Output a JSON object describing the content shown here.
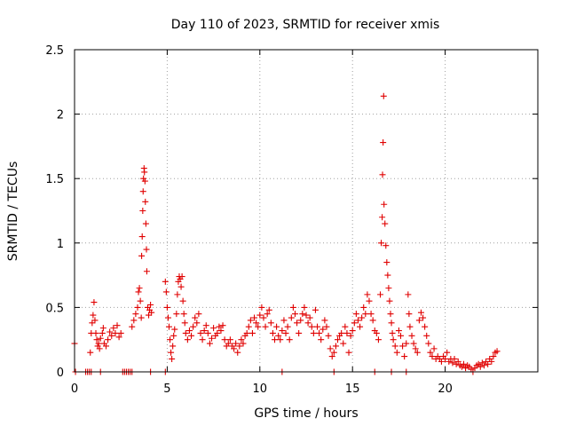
{
  "chart_data": {
    "type": "scatter",
    "title": "Day 110 of 2023, SRMTID for receiver xmis",
    "xlabel": "GPS time / hours",
    "ylabel": "SRMTID / TECUs",
    "xlim": [
      0,
      25
    ],
    "ylim": [
      0,
      2.5
    ],
    "xticks": [
      0,
      5,
      10,
      15,
      20
    ],
    "yticks": [
      0,
      0.5,
      1,
      1.5,
      2,
      2.5
    ],
    "xtick_labels": [
      "0",
      "5",
      "10",
      "15",
      "20"
    ],
    "ytick_labels": [
      "0",
      "0.5",
      "1",
      "1.5",
      "2",
      "2.5"
    ],
    "grid": true,
    "marker": "+",
    "color": "#e00000",
    "series": [
      {
        "name": "SRMTID",
        "points": [
          [
            0.0,
            0.22
          ],
          [
            0.05,
            0.0
          ],
          [
            0.6,
            0.0
          ],
          [
            0.7,
            0.0
          ],
          [
            0.8,
            0.0
          ],
          [
            0.9,
            0.0
          ],
          [
            1.4,
            0.0
          ],
          [
            2.6,
            0.0
          ],
          [
            2.7,
            0.0
          ],
          [
            2.8,
            0.0
          ],
          [
            2.9,
            0.0
          ],
          [
            3.0,
            0.0
          ],
          [
            3.1,
            0.0
          ],
          [
            4.1,
            0.0
          ],
          [
            4.9,
            0.0
          ],
          [
            11.2,
            0.0
          ],
          [
            14.0,
            0.0
          ],
          [
            16.2,
            0.0
          ],
          [
            17.1,
            0.0
          ],
          [
            17.9,
            0.0
          ],
          [
            0.85,
            0.15
          ],
          [
            0.9,
            0.3
          ],
          [
            0.95,
            0.38
          ],
          [
            1.0,
            0.44
          ],
          [
            1.05,
            0.54
          ],
          [
            1.1,
            0.4
          ],
          [
            1.15,
            0.3
          ],
          [
            1.2,
            0.25
          ],
          [
            1.25,
            0.2
          ],
          [
            1.3,
            0.22
          ],
          [
            1.35,
            0.18
          ],
          [
            1.4,
            0.26
          ],
          [
            1.5,
            0.3
          ],
          [
            1.55,
            0.34
          ],
          [
            1.6,
            0.22
          ],
          [
            1.7,
            0.2
          ],
          [
            1.8,
            0.25
          ],
          [
            1.9,
            0.31
          ],
          [
            2.0,
            0.28
          ],
          [
            2.1,
            0.34
          ],
          [
            2.2,
            0.3
          ],
          [
            2.3,
            0.36
          ],
          [
            2.4,
            0.27
          ],
          [
            2.5,
            0.3
          ],
          [
            3.1,
            0.35
          ],
          [
            3.2,
            0.4
          ],
          [
            3.3,
            0.45
          ],
          [
            3.4,
            0.5
          ],
          [
            3.45,
            0.62
          ],
          [
            3.5,
            0.65
          ],
          [
            3.55,
            0.55
          ],
          [
            3.6,
            0.42
          ],
          [
            3.62,
            0.9
          ],
          [
            3.65,
            1.05
          ],
          [
            3.68,
            1.25
          ],
          [
            3.7,
            1.4
          ],
          [
            3.72,
            1.5
          ],
          [
            3.75,
            1.58
          ],
          [
            3.77,
            1.55
          ],
          [
            3.8,
            1.48
          ],
          [
            3.82,
            1.32
          ],
          [
            3.85,
            1.15
          ],
          [
            3.88,
            0.95
          ],
          [
            3.9,
            0.78
          ],
          [
            3.95,
            0.5
          ],
          [
            4.0,
            0.44
          ],
          [
            4.05,
            0.48
          ],
          [
            4.1,
            0.52
          ],
          [
            4.15,
            0.46
          ],
          [
            4.9,
            0.7
          ],
          [
            4.95,
            0.62
          ],
          [
            5.0,
            0.5
          ],
          [
            5.05,
            0.42
          ],
          [
            5.1,
            0.35
          ],
          [
            5.15,
            0.25
          ],
          [
            5.2,
            0.15
          ],
          [
            5.25,
            0.1
          ],
          [
            5.3,
            0.2
          ],
          [
            5.35,
            0.28
          ],
          [
            5.4,
            0.33
          ],
          [
            5.5,
            0.45
          ],
          [
            5.55,
            0.6
          ],
          [
            5.6,
            0.7
          ],
          [
            5.65,
            0.74
          ],
          [
            5.7,
            0.72
          ],
          [
            5.75,
            0.66
          ],
          [
            5.8,
            0.74
          ],
          [
            5.85,
            0.55
          ],
          [
            5.9,
            0.45
          ],
          [
            5.95,
            0.38
          ],
          [
            6.0,
            0.3
          ],
          [
            6.1,
            0.25
          ],
          [
            6.2,
            0.32
          ],
          [
            6.3,
            0.28
          ],
          [
            6.4,
            0.35
          ],
          [
            6.5,
            0.42
          ],
          [
            6.6,
            0.38
          ],
          [
            6.7,
            0.45
          ],
          [
            6.8,
            0.3
          ],
          [
            6.9,
            0.25
          ],
          [
            7.0,
            0.32
          ],
          [
            7.1,
            0.36
          ],
          [
            7.2,
            0.3
          ],
          [
            7.3,
            0.22
          ],
          [
            7.4,
            0.26
          ],
          [
            7.5,
            0.34
          ],
          [
            7.6,
            0.28
          ],
          [
            7.7,
            0.3
          ],
          [
            7.8,
            0.35
          ],
          [
            7.9,
            0.32
          ],
          [
            8.0,
            0.36
          ],
          [
            8.1,
            0.25
          ],
          [
            8.2,
            0.2
          ],
          [
            8.3,
            0.22
          ],
          [
            8.4,
            0.25
          ],
          [
            8.5,
            0.2
          ],
          [
            8.6,
            0.18
          ],
          [
            8.7,
            0.22
          ],
          [
            8.8,
            0.15
          ],
          [
            8.9,
            0.2
          ],
          [
            9.0,
            0.25
          ],
          [
            9.1,
            0.22
          ],
          [
            9.2,
            0.28
          ],
          [
            9.3,
            0.3
          ],
          [
            9.4,
            0.35
          ],
          [
            9.5,
            0.4
          ],
          [
            9.6,
            0.3
          ],
          [
            9.7,
            0.42
          ],
          [
            9.8,
            0.38
          ],
          [
            9.9,
            0.35
          ],
          [
            10.0,
            0.44
          ],
          [
            10.1,
            0.5
          ],
          [
            10.2,
            0.42
          ],
          [
            10.3,
            0.35
          ],
          [
            10.4,
            0.45
          ],
          [
            10.5,
            0.48
          ],
          [
            10.6,
            0.38
          ],
          [
            10.7,
            0.3
          ],
          [
            10.8,
            0.25
          ],
          [
            10.9,
            0.35
          ],
          [
            11.0,
            0.28
          ],
          [
            11.1,
            0.25
          ],
          [
            11.2,
            0.32
          ],
          [
            11.3,
            0.4
          ],
          [
            11.4,
            0.3
          ],
          [
            11.5,
            0.35
          ],
          [
            11.6,
            0.25
          ],
          [
            11.7,
            0.42
          ],
          [
            11.8,
            0.5
          ],
          [
            11.9,
            0.45
          ],
          [
            12.0,
            0.38
          ],
          [
            12.1,
            0.3
          ],
          [
            12.2,
            0.4
          ],
          [
            12.3,
            0.45
          ],
          [
            12.4,
            0.5
          ],
          [
            12.5,
            0.44
          ],
          [
            12.6,
            0.38
          ],
          [
            12.7,
            0.42
          ],
          [
            12.8,
            0.35
          ],
          [
            12.9,
            0.3
          ],
          [
            13.0,
            0.48
          ],
          [
            13.1,
            0.35
          ],
          [
            13.2,
            0.3
          ],
          [
            13.3,
            0.25
          ],
          [
            13.4,
            0.33
          ],
          [
            13.5,
            0.4
          ],
          [
            13.6,
            0.35
          ],
          [
            13.7,
            0.28
          ],
          [
            13.8,
            0.18
          ],
          [
            13.9,
            0.12
          ],
          [
            14.0,
            0.15
          ],
          [
            14.1,
            0.2
          ],
          [
            14.2,
            0.25
          ],
          [
            14.3,
            0.28
          ],
          [
            14.4,
            0.3
          ],
          [
            14.5,
            0.22
          ],
          [
            14.6,
            0.35
          ],
          [
            14.7,
            0.3
          ],
          [
            14.8,
            0.15
          ],
          [
            14.9,
            0.28
          ],
          [
            15.0,
            0.32
          ],
          [
            15.1,
            0.38
          ],
          [
            15.2,
            0.45
          ],
          [
            15.3,
            0.4
          ],
          [
            15.4,
            0.35
          ],
          [
            15.5,
            0.42
          ],
          [
            15.6,
            0.5
          ],
          [
            15.7,
            0.45
          ],
          [
            15.8,
            0.6
          ],
          [
            15.9,
            0.55
          ],
          [
            16.0,
            0.45
          ],
          [
            16.1,
            0.4
          ],
          [
            16.2,
            0.32
          ],
          [
            16.3,
            0.3
          ],
          [
            16.4,
            0.25
          ],
          [
            16.5,
            0.6
          ],
          [
            16.55,
            1.0
          ],
          [
            16.6,
            1.2
          ],
          [
            16.62,
            1.53
          ],
          [
            16.65,
            1.78
          ],
          [
            16.68,
            2.14
          ],
          [
            16.7,
            1.3
          ],
          [
            16.75,
            1.15
          ],
          [
            16.8,
            0.98
          ],
          [
            16.85,
            0.85
          ],
          [
            16.9,
            0.75
          ],
          [
            16.95,
            0.65
          ],
          [
            17.0,
            0.55
          ],
          [
            17.05,
            0.45
          ],
          [
            17.1,
            0.38
          ],
          [
            17.15,
            0.3
          ],
          [
            17.2,
            0.25
          ],
          [
            17.3,
            0.2
          ],
          [
            17.4,
            0.15
          ],
          [
            17.5,
            0.32
          ],
          [
            17.6,
            0.28
          ],
          [
            17.7,
            0.2
          ],
          [
            17.8,
            0.12
          ],
          [
            17.9,
            0.22
          ],
          [
            18.0,
            0.6
          ],
          [
            18.05,
            0.45
          ],
          [
            18.1,
            0.35
          ],
          [
            18.2,
            0.28
          ],
          [
            18.3,
            0.22
          ],
          [
            18.4,
            0.18
          ],
          [
            18.5,
            0.15
          ],
          [
            18.6,
            0.4
          ],
          [
            18.7,
            0.46
          ],
          [
            18.8,
            0.42
          ],
          [
            18.9,
            0.35
          ],
          [
            19.0,
            0.28
          ],
          [
            19.1,
            0.22
          ],
          [
            19.2,
            0.15
          ],
          [
            19.3,
            0.12
          ],
          [
            19.4,
            0.18
          ],
          [
            19.5,
            0.1
          ],
          [
            19.6,
            0.12
          ],
          [
            19.7,
            0.1
          ],
          [
            19.8,
            0.08
          ],
          [
            19.9,
            0.12
          ],
          [
            20.0,
            0.1
          ],
          [
            20.1,
            0.15
          ],
          [
            20.2,
            0.08
          ],
          [
            20.3,
            0.1
          ],
          [
            20.4,
            0.07
          ],
          [
            20.5,
            0.1
          ],
          [
            20.6,
            0.06
          ],
          [
            20.7,
            0.08
          ],
          [
            20.8,
            0.05
          ],
          [
            20.9,
            0.04
          ],
          [
            21.0,
            0.06
          ],
          [
            21.1,
            0.03
          ],
          [
            21.2,
            0.05
          ],
          [
            21.3,
            0.04
          ],
          [
            21.4,
            0.02
          ],
          [
            21.5,
            0.0
          ],
          [
            21.6,
            0.03
          ],
          [
            21.7,
            0.05
          ],
          [
            21.8,
            0.06
          ],
          [
            21.9,
            0.04
          ],
          [
            22.0,
            0.07
          ],
          [
            22.1,
            0.05
          ],
          [
            22.2,
            0.08
          ],
          [
            22.3,
            0.06
          ],
          [
            22.4,
            0.1
          ],
          [
            22.5,
            0.08
          ],
          [
            22.6,
            0.12
          ],
          [
            22.7,
            0.15
          ],
          [
            22.8,
            0.16
          ]
        ]
      }
    ]
  }
}
